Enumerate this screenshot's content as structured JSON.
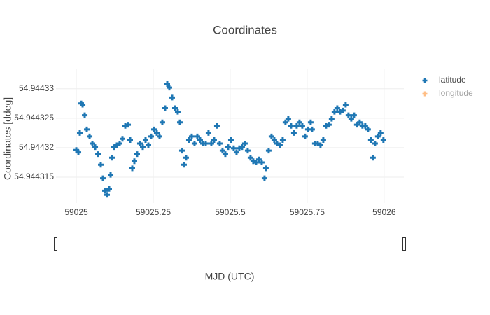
{
  "chart_data": {
    "type": "scatter",
    "title": "Coordinates",
    "x_label": "MJD (UTC)",
    "y_label": "Coordinates [ddeg]",
    "x": [
      59025,
      59025.0068,
      59025.0114,
      59025.0159,
      59025.0205,
      59025.0273,
      59025.0341,
      59025.0432,
      59025.0523,
      59025.0614,
      59025.0705,
      59025.0795,
      59025.0864,
      59025.0932,
      59025.1,
      59025.1068,
      59025.1114,
      59025.1159,
      59025.1227,
      59025.1318,
      59025.1409,
      59025.15,
      59025.1591,
      59025.1682,
      59025.175,
      59025.1818,
      59025.1886,
      59025.1977,
      59025.2068,
      59025.2159,
      59025.225,
      59025.2341,
      59025.2432,
      59025.2523,
      59025.2614,
      59025.2705,
      59025.2795,
      59025.2886,
      59025.2955,
      59025.3023,
      59025.3114,
      59025.3205,
      59025.3295,
      59025.3364,
      59025.3432,
      59025.35,
      59025.3568,
      59025.3659,
      59025.375,
      59025.3841,
      59025.3932,
      59025.4023,
      59025.4114,
      59025.4205,
      59025.4295,
      59025.4386,
      59025.4477,
      59025.4568,
      59025.4659,
      59025.475,
      59025.4841,
      59025.4932,
      59025.5023,
      59025.5114,
      59025.5205,
      59025.5295,
      59025.5386,
      59025.5477,
      59025.5568,
      59025.5659,
      59025.575,
      59025.5841,
      59025.5932,
      59025.6023,
      59025.6114,
      59025.6159,
      59025.625,
      59025.6341,
      59025.6432,
      59025.6523,
      59025.6614,
      59025.6705,
      59025.6795,
      59025.6886,
      59025.6977,
      59025.7068,
      59025.7159,
      59025.725,
      59025.7341,
      59025.7432,
      59025.7523,
      59025.7614,
      59025.7659,
      59025.775,
      59025.7841,
      59025.7932,
      59025.8023,
      59025.8114,
      59025.8205,
      59025.8295,
      59025.8386,
      59025.8477,
      59025.8568,
      59025.8659,
      59025.875,
      59025.8841,
      59025.8932,
      59025.9023,
      59025.9114,
      59025.9205,
      59025.9295,
      59025.9386,
      59025.9477,
      59025.9568,
      59025.9636,
      59025.9705,
      59025.9795,
      59025.9886,
      59025.9977
    ],
    "series": [
      {
        "name": "latitude",
        "color": "#1f77b4",
        "values": [
          54.9443196,
          54.9443192,
          54.9443225,
          54.9443275,
          54.9443273,
          54.9443255,
          54.9443231,
          54.9443219,
          54.9443207,
          54.9443201,
          54.9443189,
          54.9443171,
          54.9443148,
          54.9443127,
          54.944312,
          54.944313,
          54.9443154,
          54.9443183,
          54.9443201,
          54.9443204,
          54.9443207,
          54.9443215,
          54.9443237,
          54.9443239,
          54.9443213,
          54.9443165,
          54.9443177,
          54.9443189,
          54.9443207,
          54.9443201,
          54.9443213,
          54.9443204,
          54.9443219,
          54.9443231,
          54.9443225,
          54.9443219,
          54.9443243,
          54.9443267,
          54.9443308,
          54.9443302,
          54.9443285,
          54.9443267,
          54.9443261,
          54.9443243,
          54.9443195,
          54.9443171,
          54.9443183,
          54.9443213,
          54.9443219,
          54.9443207,
          54.9443219,
          54.9443213,
          54.9443207,
          54.9443207,
          54.9443225,
          54.9443207,
          54.9443213,
          54.9443237,
          54.9443207,
          54.9443195,
          54.9443189,
          54.9443201,
          54.9443213,
          54.9443199,
          54.9443192,
          54.9443199,
          54.9443201,
          54.9443207,
          54.9443195,
          54.9443183,
          54.9443177,
          54.9443175,
          54.944318,
          54.9443175,
          54.9443148,
          54.9443165,
          54.9443195,
          54.9443219,
          54.9443213,
          54.9443207,
          54.9443204,
          54.9443213,
          54.9443243,
          54.9443249,
          54.9443237,
          54.9443225,
          54.9443237,
          54.9443243,
          54.9443237,
          54.9443219,
          54.9443231,
          54.9443243,
          54.9443231,
          54.9443207,
          54.9443207,
          54.9443204,
          54.9443213,
          54.9443237,
          54.9443239,
          54.9443249,
          54.9443261,
          54.9443267,
          54.9443261,
          54.9443263,
          54.9443273,
          54.9443255,
          54.9443249,
          54.9443255,
          54.9443239,
          54.9443243,
          54.9443237,
          54.9443237,
          54.9443231,
          54.9443213,
          54.9443183,
          54.9443207,
          54.9443219,
          54.9443225,
          54.9443213
        ]
      },
      {
        "name": "longitude",
        "color": "#ff7f0e",
        "visible": "legendonly"
      }
    ],
    "xlim": [
      59024.934,
      59026.064
    ],
    "ylim": [
      54.9443106,
      54.9443333
    ],
    "xticks": [
      59025,
      59025.25,
      59025.5,
      59025.75,
      59026
    ],
    "yticks": [
      54.944315,
      54.94432,
      54.944325,
      54.94433
    ],
    "grid": true,
    "legend": "top-right"
  }
}
